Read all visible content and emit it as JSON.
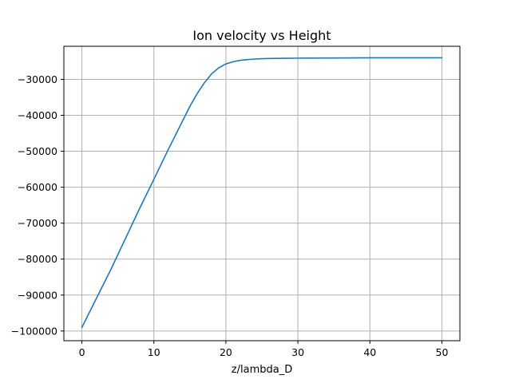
{
  "chart_data": {
    "type": "line",
    "title": "Ion velocity vs Height",
    "xlabel": "z/lambda_D",
    "ylabel": "",
    "xlim": [
      -2.5,
      52.5
    ],
    "ylim": [
      -102700,
      -20800
    ],
    "grid": true,
    "x_ticks": [
      0,
      10,
      20,
      30,
      40,
      50
    ],
    "x_tick_labels": [
      "0",
      "10",
      "20",
      "30",
      "40",
      "50"
    ],
    "y_ticks": [
      -100000,
      -90000,
      -80000,
      -70000,
      -60000,
      -50000,
      -40000,
      -30000
    ],
    "y_tick_labels": [
      "−100000",
      "−90000",
      "−80000",
      "−70000",
      "−60000",
      "−50000",
      "−40000",
      "−30000"
    ],
    "line_color": "#1f77b4",
    "grid_color": "#b0b0b0",
    "series": [
      {
        "x": [
          0,
          2,
          4,
          6,
          8,
          10,
          12,
          14,
          15,
          16,
          17,
          18,
          19,
          20,
          21,
          22,
          23,
          24,
          25,
          26,
          28,
          30,
          35,
          40,
          45,
          50
        ],
        "y": [
          -99000,
          -91000,
          -83000,
          -74500,
          -66000,
          -57800,
          -49500,
          -41500,
          -37500,
          -34000,
          -31000,
          -28500,
          -26800,
          -25700,
          -25100,
          -24700,
          -24500,
          -24350,
          -24250,
          -24200,
          -24150,
          -24100,
          -24050,
          -24000,
          -24000,
          -24000
        ]
      }
    ]
  }
}
